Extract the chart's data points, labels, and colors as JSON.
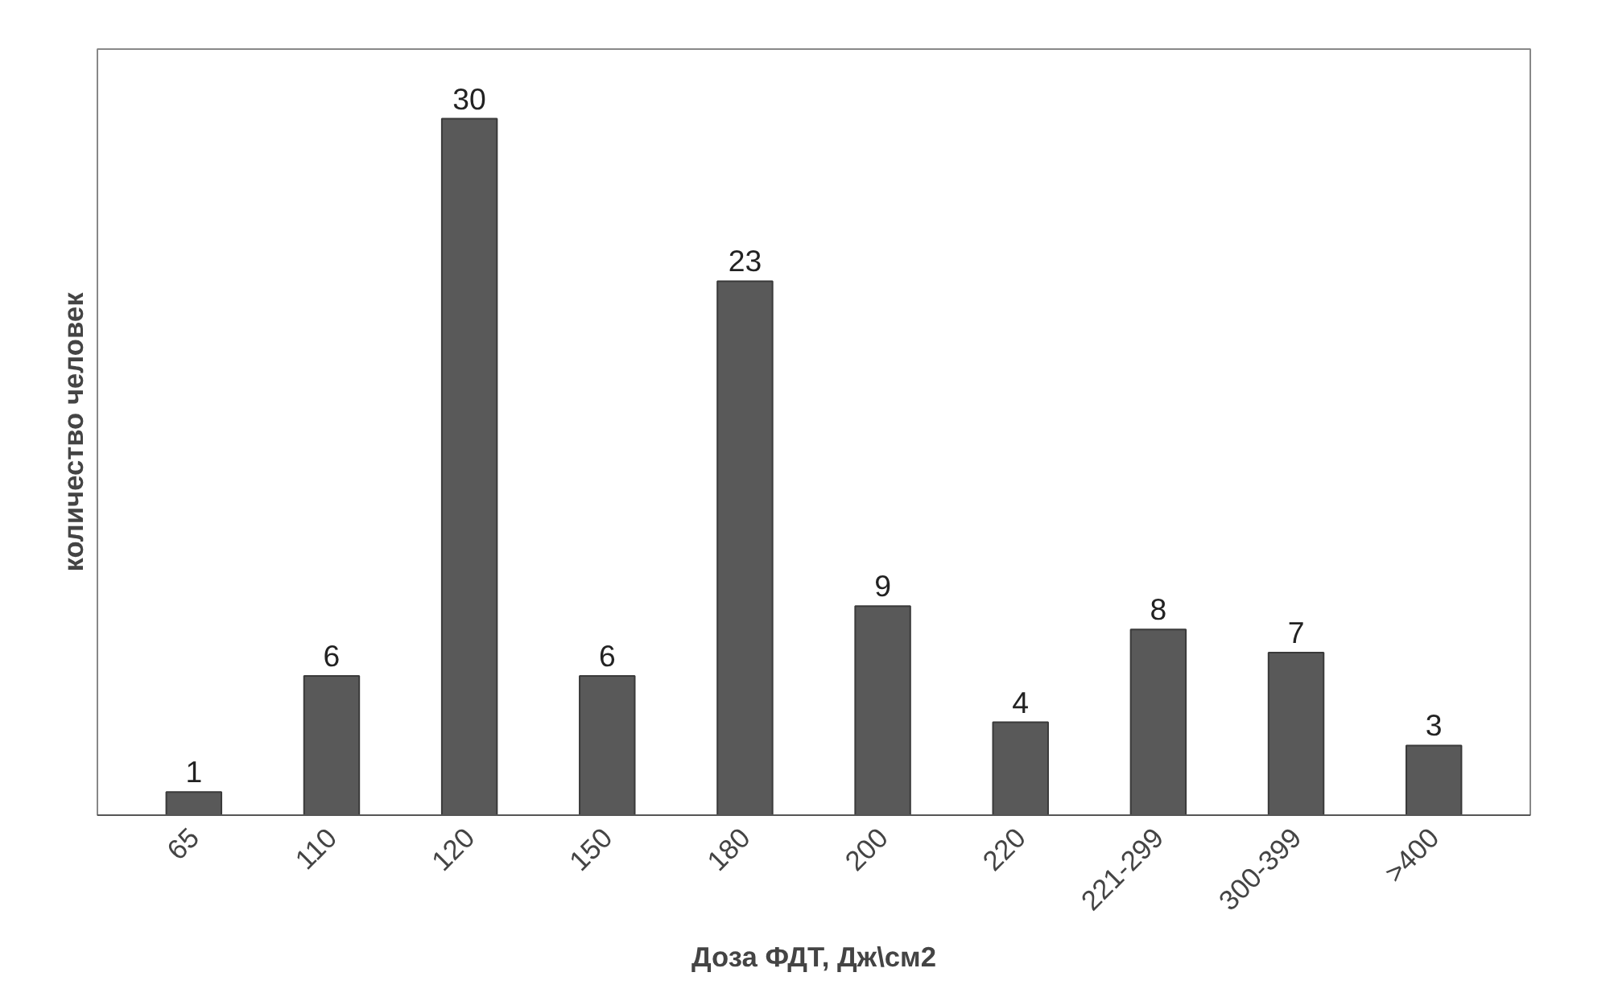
{
  "chart_data": {
    "type": "bar",
    "xlabel": "Доза ФДТ, Дж\\см2",
    "ylabel": "количество человек",
    "categories": [
      "65",
      "110",
      "120",
      "150",
      "180",
      "200",
      "220",
      "221-299",
      "300-399",
      ">400"
    ],
    "values": [
      1,
      6,
      30,
      6,
      23,
      9,
      4,
      8,
      7,
      3
    ],
    "color": "#595959",
    "data_labels": true,
    "grid": false
  }
}
